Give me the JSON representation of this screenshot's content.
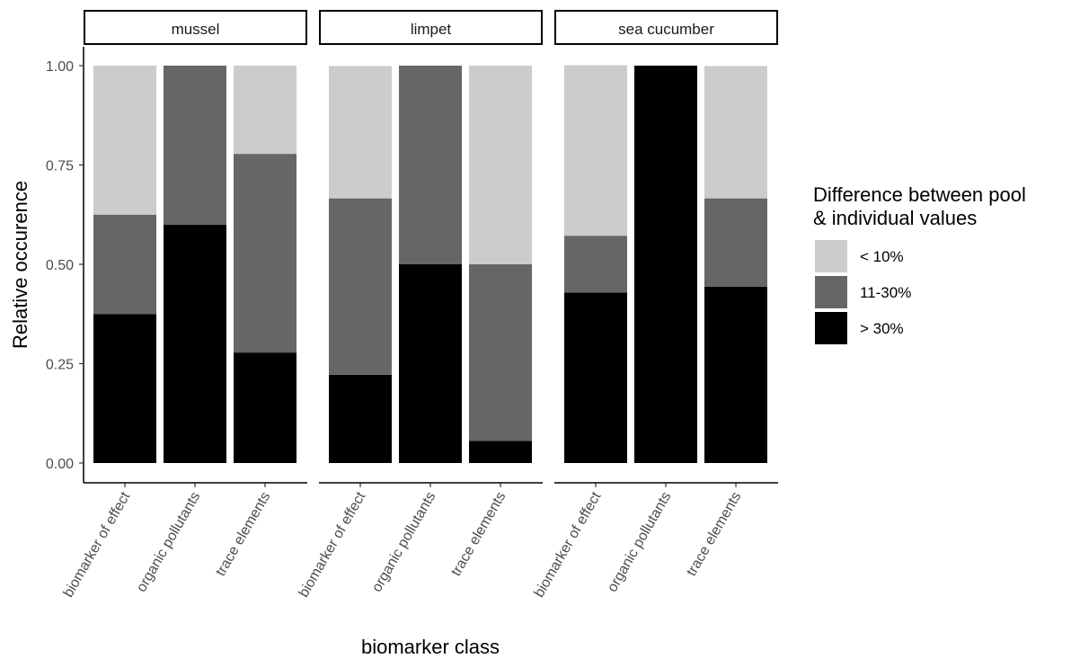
{
  "chart_data": {
    "type": "bar",
    "stacked": true,
    "facet_by": "organism",
    "facets": [
      {
        "label": "mussel",
        "categories": [
          "biomarker of effect",
          "organic pollutants",
          "trace elements"
        ],
        "series": [
          {
            "name": "> 30%",
            "values": [
              0.375,
              0.6,
              0.278
            ]
          },
          {
            "name": "11-30%",
            "values": [
              0.25,
              0.4,
              0.5
            ]
          },
          {
            "name": "< 10%",
            "values": [
              0.375,
              0.0,
              0.222
            ]
          }
        ]
      },
      {
        "label": "limpet",
        "categories": [
          "biomarker of effect",
          "organic pollutants",
          "trace elements"
        ],
        "series": [
          {
            "name": "> 30%",
            "values": [
              0.222,
              0.5,
              0.056
            ]
          },
          {
            "name": "11-30%",
            "values": [
              0.444,
              0.5,
              0.444
            ]
          },
          {
            "name": "< 10%",
            "values": [
              0.333,
              0.0,
              0.5
            ]
          }
        ]
      },
      {
        "label": "sea cucumber",
        "categories": [
          "biomarker of effect",
          "organic pollutants",
          "trace elements"
        ],
        "series": [
          {
            "name": "> 30%",
            "values": [
              0.429,
              1.0,
              0.444
            ]
          },
          {
            "name": "11-30%",
            "values": [
              0.143,
              0.0,
              0.222
            ]
          },
          {
            "name": "< 10%",
            "values": [
              0.429,
              0.0,
              0.333
            ]
          }
        ]
      }
    ],
    "xlabel": "biomarker class",
    "ylabel": "Relative occurence",
    "ylim": [
      0,
      1
    ],
    "yticks": [
      "0.00",
      "0.25",
      "0.50",
      "0.75",
      "1.00"
    ],
    "grid": false,
    "legend": {
      "title": "Difference between pool\n& individual values",
      "placement": "right",
      "items": [
        {
          "label": "< 10%",
          "color": "#cccccc"
        },
        {
          "label": "11-30%",
          "color": "#666666"
        },
        {
          "label": "> 30%",
          "color": "#000000"
        }
      ]
    },
    "colors": {
      "< 10%": "#cccccc",
      "11-30%": "#666666",
      "> 30%": "#000000"
    }
  }
}
